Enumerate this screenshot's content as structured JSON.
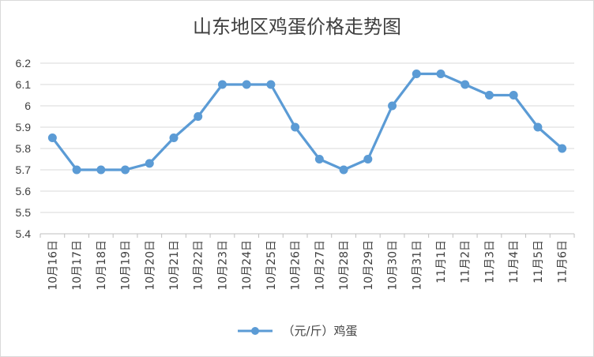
{
  "chart_data": {
    "type": "line",
    "title": "山东地区鸡蛋价格走势图",
    "xlabel": "",
    "ylabel": "",
    "ylim": [
      5.4,
      6.2
    ],
    "yticks": [
      "5.4",
      "5.5",
      "5.6",
      "5.7",
      "5.8",
      "5.9",
      "6",
      "6.1",
      "6.2"
    ],
    "grid": true,
    "legend_position": "bottom",
    "categories": [
      "10月16日",
      "10月17日",
      "10月18日",
      "10月19日",
      "10月20日",
      "10月21日",
      "10月22日",
      "10月23日",
      "10月24日",
      "10月25日",
      "10月26日",
      "10月27日",
      "10月28日",
      "10月29日",
      "10月30日",
      "10月31日",
      "11月1日",
      "11月2日",
      "11月3日",
      "11月4日",
      "11月5日",
      "11月6日"
    ],
    "series": [
      {
        "name": "（元/斤）鸡蛋",
        "color": "#5b9bd5",
        "values": [
          5.85,
          5.7,
          5.7,
          5.7,
          5.73,
          5.85,
          5.95,
          6.1,
          6.1,
          6.1,
          5.9,
          5.75,
          5.7,
          5.75,
          6.0,
          6.15,
          6.15,
          6.1,
          6.05,
          6.05,
          5.9,
          5.8
        ]
      }
    ]
  }
}
